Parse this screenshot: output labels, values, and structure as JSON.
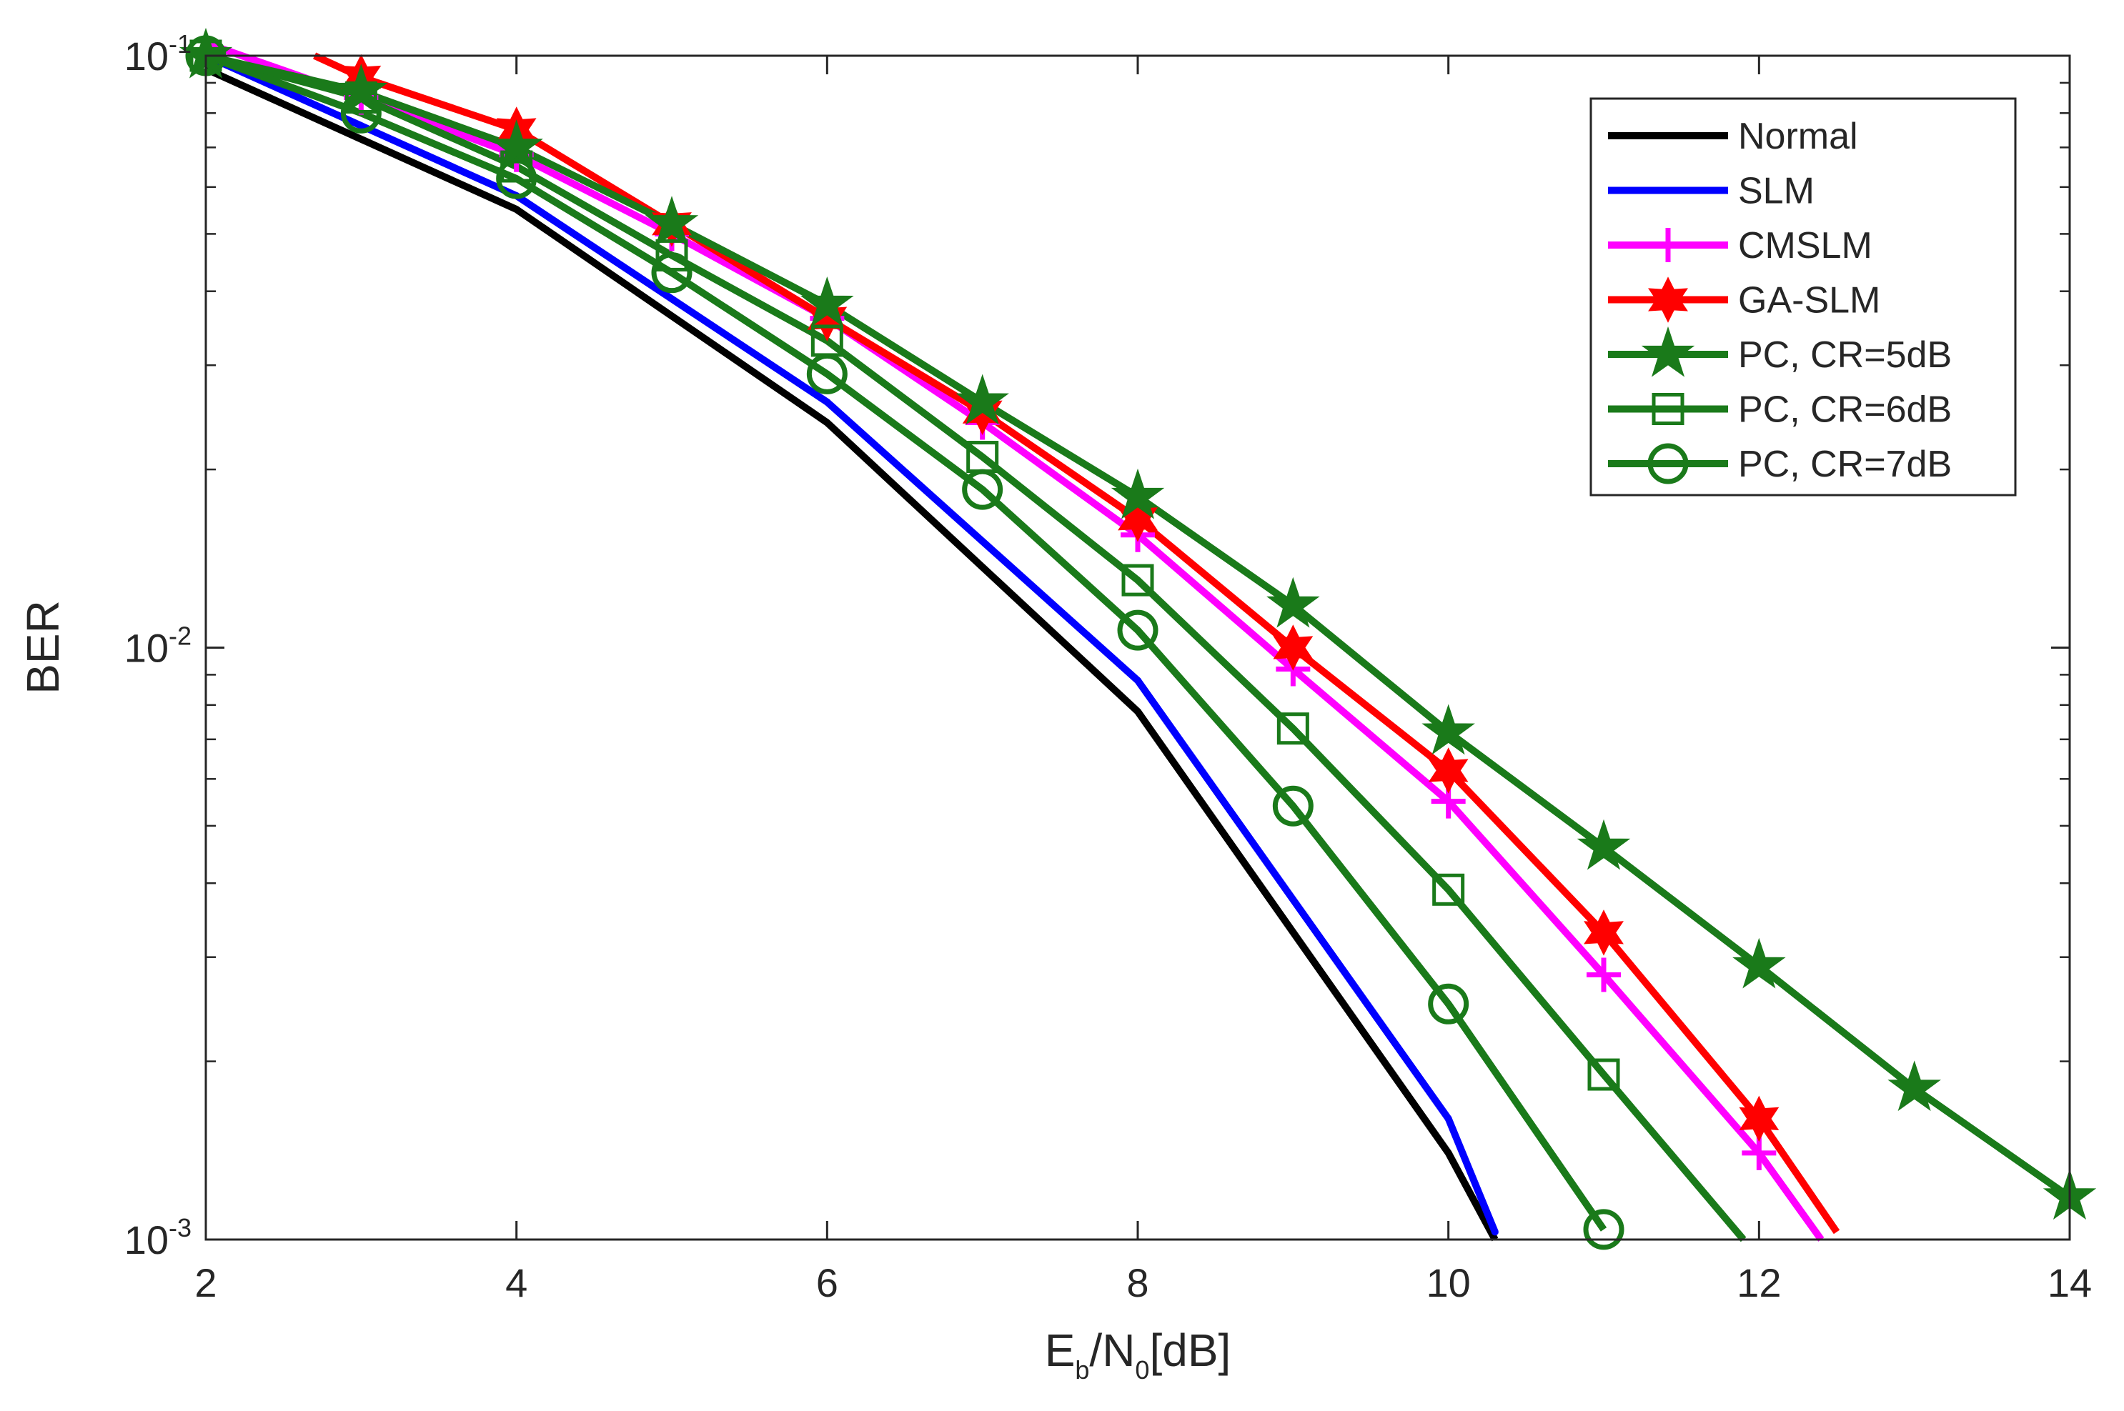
{
  "chart_data": {
    "type": "line",
    "title": "",
    "xlabel": {
      "base": "E",
      "sub1": "b",
      "mid": "/N",
      "sub2": "0",
      "tail": "[dB]"
    },
    "ylabel": "BER",
    "xlim": [
      2,
      14
    ],
    "ylim": [
      0.001,
      0.1
    ],
    "yscale": "log",
    "xticks": [
      2,
      4,
      6,
      8,
      10,
      12,
      14
    ],
    "xtick_labels": [
      "2",
      "4",
      "6",
      "8",
      "10",
      "12",
      "14"
    ],
    "yticks": [
      {
        "value": 0.1,
        "base": "10",
        "exp": "-1"
      },
      {
        "value": 0.01,
        "base": "10",
        "exp": "-2"
      },
      {
        "value": 0.001,
        "base": "10",
        "exp": "-3"
      }
    ],
    "grid": false,
    "legend_position": "top-right",
    "series": [
      {
        "name": "Normal",
        "color": "#000000",
        "marker": "none",
        "x": [
          2,
          4,
          6,
          8,
          10,
          10.3
        ],
        "y": [
          0.095,
          0.055,
          0.024,
          0.0078,
          0.0014,
          0.001
        ]
      },
      {
        "name": "SLM",
        "color": "#0000ff",
        "marker": "point",
        "x": [
          2,
          4,
          6,
          8,
          10,
          10.3
        ],
        "y": [
          0.1,
          0.058,
          0.026,
          0.0088,
          0.0016,
          0.00103
        ]
      },
      {
        "name": "CMSLM",
        "color": "#ff00ff",
        "marker": "plus",
        "x": [
          2,
          3,
          4,
          5,
          6,
          7,
          8,
          9,
          10,
          11,
          12,
          12.4
        ],
        "y": [
          0.105,
          0.085,
          0.068,
          0.05,
          0.036,
          0.024,
          0.0155,
          0.0092,
          0.0055,
          0.0028,
          0.0014,
          0.001
        ]
      },
      {
        "name": "GA-SLM",
        "color": "#ff0000",
        "marker": "hexagram",
        "x": [
          2.7,
          3,
          4,
          5,
          6,
          7,
          8,
          9,
          10,
          11,
          12,
          12.5
        ],
        "y": [
          0.1,
          0.092,
          0.075,
          0.052,
          0.036,
          0.025,
          0.0165,
          0.01,
          0.0062,
          0.0033,
          0.0016,
          0.00103
        ]
      },
      {
        "name": "PC, CR=5dB",
        "color": "#1a7a1a",
        "marker": "pentagram",
        "x": [
          2,
          3,
          4,
          5,
          6,
          7,
          8,
          9,
          10,
          11,
          12,
          13,
          14
        ],
        "y": [
          0.1,
          0.087,
          0.07,
          0.052,
          0.038,
          0.026,
          0.018,
          0.0118,
          0.0072,
          0.0046,
          0.0029,
          0.0018,
          0.00118
        ]
      },
      {
        "name": "PC, CR=6dB",
        "color": "#1a7a1a",
        "marker": "square",
        "x": [
          2,
          3,
          4,
          5,
          6,
          7,
          8,
          9,
          10,
          11,
          11.9
        ],
        "y": [
          0.1,
          0.085,
          0.065,
          0.046,
          0.033,
          0.021,
          0.013,
          0.0073,
          0.0039,
          0.0019,
          0.001
        ]
      },
      {
        "name": "PC, CR=7dB",
        "color": "#1a7a1a",
        "marker": "circle",
        "x": [
          2,
          3,
          4,
          5,
          6,
          7,
          8,
          9,
          10,
          11
        ],
        "y": [
          0.1,
          0.08,
          0.062,
          0.043,
          0.029,
          0.0185,
          0.0107,
          0.0054,
          0.0025,
          0.00104
        ]
      }
    ]
  }
}
